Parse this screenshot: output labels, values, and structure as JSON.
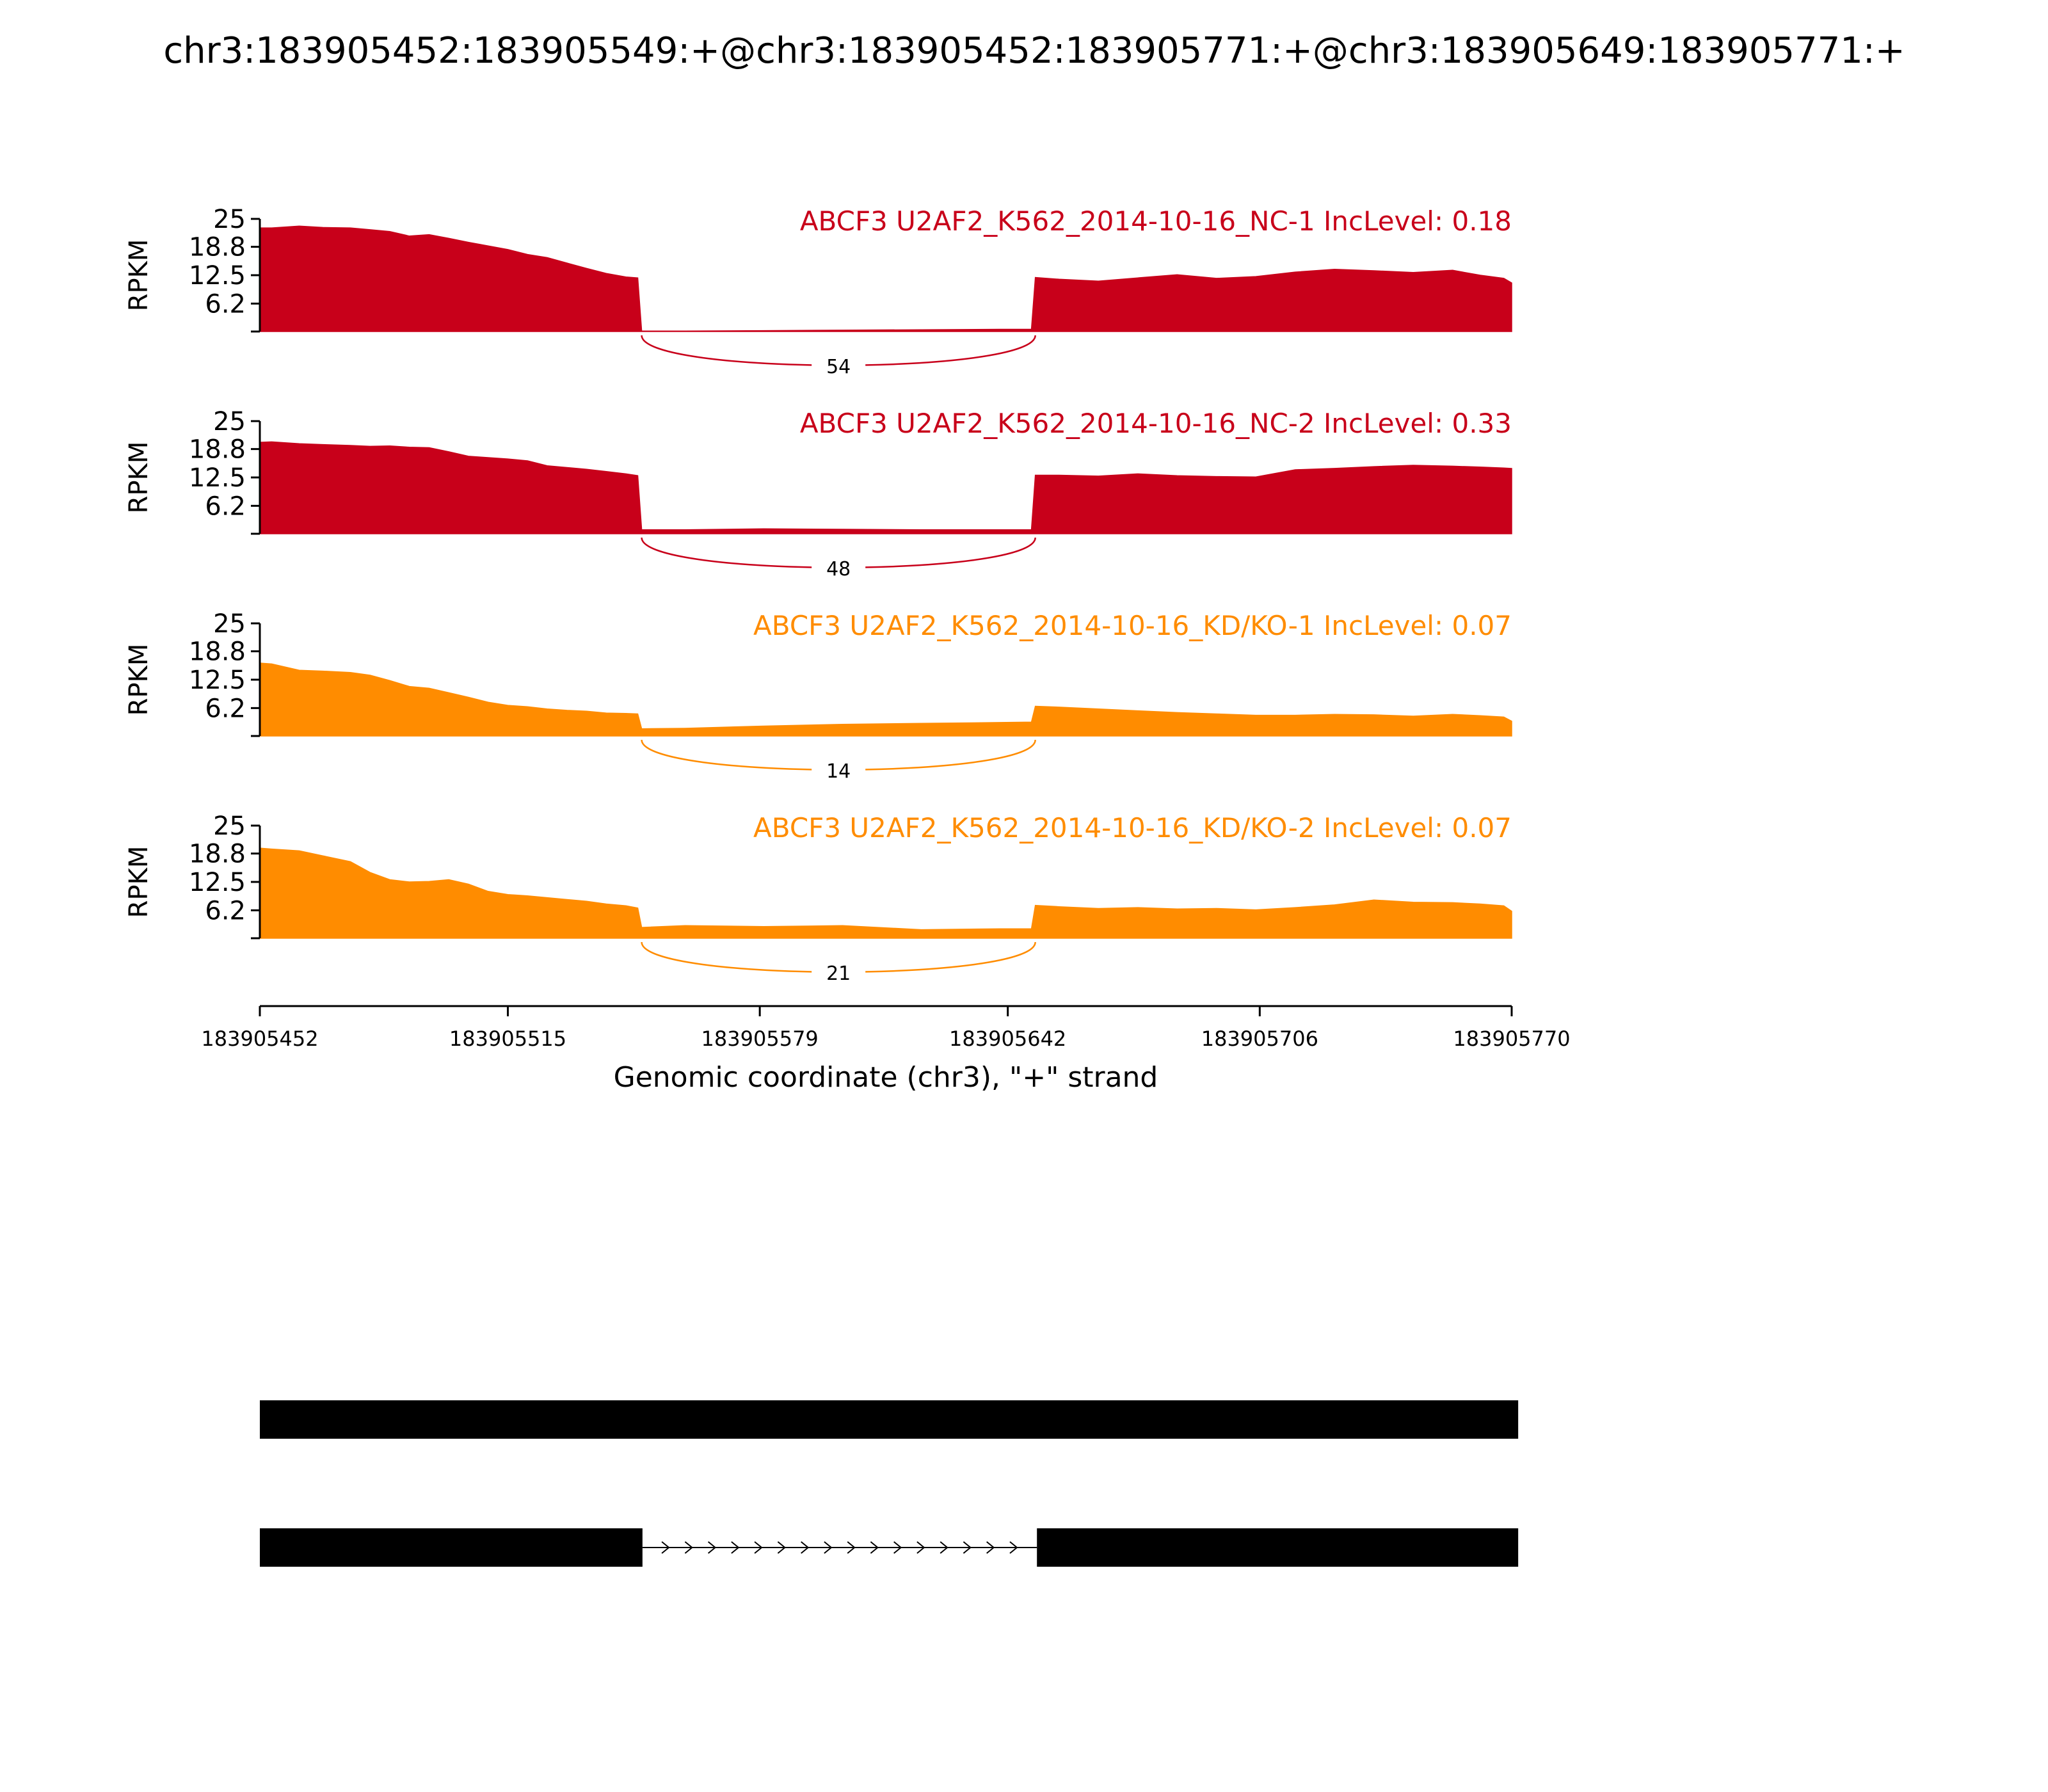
{
  "figure": {
    "title": "chr3:183905452:183905549:+@chr3:183905452:183905771:+@chr3:183905649:183905771:+"
  },
  "colors": {
    "nc": "#c8001a",
    "kd": "#ff8c00",
    "axis": "#000000",
    "gene_model": "#000000"
  },
  "chart_data": {
    "type": "area",
    "subtype": "sashimi",
    "ylabel": "RPKM",
    "xlabel": "Genomic coordinate (chr3), \"+\" strand",
    "xlim": [
      183905452,
      183905770
    ],
    "ylim": [
      0,
      25
    ],
    "yticks": [
      "25",
      "18.8",
      "12.5",
      "6.2"
    ],
    "yticks_values": [
      25,
      18.8,
      12.5,
      6.2
    ],
    "xticks": [
      "183905452",
      "183905515",
      "183905579",
      "183905642",
      "183905706",
      "183905770"
    ],
    "xticks_values": [
      183905452,
      183905515,
      183905579,
      183905642,
      183905706,
      183905770
    ],
    "grid": false,
    "exon1": [
      183905452,
      183905549
    ],
    "skipped_exon": [
      183905549,
      183905649
    ],
    "exon2": [
      183905649,
      183905770
    ],
    "junction": [
      183905549,
      183905649
    ],
    "tracks": [
      {
        "label": "ABCF3 U2AF2_K562_2014-10-16_NC-1 IncLevel: 0.18",
        "group": "nc",
        "junction_count": "54",
        "x": [
          183905452,
          183905455,
          183905462,
          183905468,
          183905475,
          183905480,
          183905485,
          183905490,
          183905495,
          183905500,
          183905505,
          183905510,
          183905515,
          183905520,
          183905525,
          183905530,
          183905535,
          183905540,
          183905545,
          183905548,
          183905549,
          183905560,
          183905580,
          183905600,
          183905620,
          183905640,
          183905648,
          183905649,
          183905655,
          183905665,
          183905675,
          183905685,
          183905695,
          183905705,
          183905715,
          183905725,
          183905735,
          183905745,
          183905755,
          183905762,
          183905768,
          183905770
        ],
        "y": [
          23.0,
          23.0,
          23.4,
          23.1,
          23.0,
          22.6,
          22.2,
          21.2,
          21.5,
          20.7,
          19.8,
          19.0,
          18.2,
          17.1,
          16.4,
          15.2,
          14.0,
          12.9,
          12.1,
          11.9,
          0.1,
          0.1,
          0.2,
          0.3,
          0.4,
          0.5,
          0.5,
          12.0,
          11.6,
          11.2,
          11.9,
          12.6,
          11.8,
          12.2,
          13.2,
          13.8,
          13.5,
          13.1,
          13.6,
          12.5,
          11.8,
          10.8
        ]
      },
      {
        "label": "ABCF3 U2AF2_K562_2014-10-16_NC-2 IncLevel: 0.33",
        "group": "nc",
        "junction_count": "48",
        "x": [
          183905452,
          183905455,
          183905462,
          183905468,
          183905475,
          183905480,
          183905485,
          183905490,
          183905495,
          183905500,
          183905505,
          183905510,
          183905515,
          183905520,
          183905525,
          183905530,
          183905535,
          183905540,
          183905545,
          183905548,
          183905549,
          183905560,
          183905580,
          183905600,
          183905620,
          183905640,
          183905648,
          183905649,
          183905655,
          183905665,
          183905675,
          183905685,
          183905695,
          183905705,
          183905715,
          183905725,
          183905735,
          183905745,
          183905755,
          183905762,
          183905768,
          183905770
        ],
        "y": [
          20.3,
          20.4,
          20.0,
          19.8,
          19.6,
          19.4,
          19.5,
          19.2,
          19.1,
          18.2,
          17.2,
          16.9,
          16.6,
          16.2,
          15.1,
          14.7,
          14.3,
          13.8,
          13.3,
          12.9,
          0.9,
          0.9,
          1.1,
          1.0,
          0.9,
          0.9,
          0.9,
          13.0,
          13.0,
          12.8,
          13.3,
          12.9,
          12.7,
          12.6,
          14.2,
          14.5,
          14.9,
          15.2,
          15.0,
          14.8,
          14.6,
          14.5
        ]
      },
      {
        "label": "ABCF3 U2AF2_K562_2014-10-16_KD/KO-1 IncLevel: 0.07",
        "group": "kd",
        "junction_count": "14",
        "x": [
          183905452,
          183905455,
          183905462,
          183905468,
          183905475,
          183905480,
          183905485,
          183905490,
          183905495,
          183905500,
          183905505,
          183905510,
          183905515,
          183905520,
          183905525,
          183905530,
          183905535,
          183905540,
          183905545,
          183905548,
          183905549,
          183905560,
          183905580,
          183905600,
          183905620,
          183905640,
          183905648,
          183905649,
          183905655,
          183905665,
          183905675,
          183905685,
          183905695,
          183905705,
          183905715,
          183905725,
          183905735,
          183905745,
          183905755,
          183905762,
          183905768,
          183905770
        ],
        "y": [
          16.2,
          16.0,
          14.6,
          14.4,
          14.1,
          13.5,
          12.3,
          11.0,
          10.6,
          9.6,
          8.6,
          7.5,
          6.8,
          6.5,
          6.0,
          5.7,
          5.5,
          5.1,
          5.0,
          4.9,
          1.6,
          1.7,
          2.2,
          2.6,
          2.8,
          3.0,
          3.1,
          6.6,
          6.4,
          6.0,
          5.6,
          5.2,
          4.9,
          4.6,
          4.6,
          4.8,
          4.7,
          4.4,
          4.8,
          4.5,
          4.2,
          3.3
        ]
      },
      {
        "label": "ABCF3 U2AF2_K562_2014-10-16_KD/KO-2 IncLevel: 0.07",
        "group": "kd",
        "junction_count": "21",
        "x": [
          183905452,
          183905455,
          183905462,
          183905468,
          183905475,
          183905480,
          183905485,
          183905490,
          183905495,
          183905500,
          183905505,
          183905510,
          183905515,
          183905520,
          183905525,
          183905530,
          183905535,
          183905540,
          183905545,
          183905548,
          183905549,
          183905560,
          183905580,
          183905600,
          183905620,
          183905640,
          183905648,
          183905649,
          183905655,
          183905665,
          183905675,
          183905685,
          183905695,
          183905705,
          183905715,
          183905725,
          183905735,
          183905745,
          183905755,
          183905762,
          183905768,
          183905770
        ],
        "y": [
          20.0,
          19.8,
          19.4,
          18.3,
          17.0,
          14.6,
          13.0,
          12.5,
          12.6,
          13.0,
          12.0,
          10.4,
          9.7,
          9.4,
          9.0,
          8.6,
          8.2,
          7.6,
          7.2,
          6.7,
          2.4,
          2.8,
          2.6,
          2.8,
          1.9,
          2.1,
          2.1,
          7.3,
          7.0,
          6.6,
          6.8,
          6.5,
          6.6,
          6.3,
          6.8,
          7.4,
          8.5,
          8.0,
          7.9,
          7.6,
          7.2,
          6.0
        ]
      }
    ]
  },
  "gene_model": {
    "isoforms": [
      {
        "exons": [
          [
            183905452,
            183905771
          ]
        ]
      },
      {
        "exons": [
          [
            183905452,
            183905549
          ],
          [
            183905649,
            183905771
          ]
        ]
      }
    ]
  }
}
